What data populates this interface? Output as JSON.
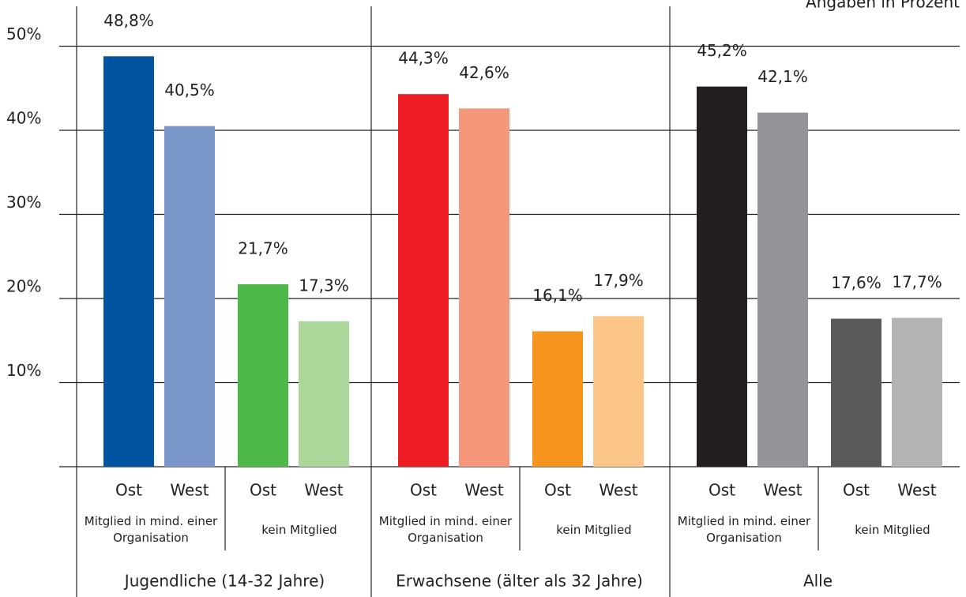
{
  "chart_data": {
    "type": "bar",
    "annotation": "Angaben in Prozent",
    "ylim": [
      0,
      55
    ],
    "yticks": [
      {
        "value": 10,
        "label": "10%"
      },
      {
        "value": 20,
        "label": "20%"
      },
      {
        "value": 30,
        "label": "30%"
      },
      {
        "value": 40,
        "label": "40%"
      },
      {
        "value": 50,
        "label": "50%"
      }
    ],
    "grid": true,
    "groups": [
      {
        "name": "Jugendliche (14-32 Jahre)",
        "subgroups": [
          {
            "name": "Mitglied in mind. einer Organisation",
            "categories": [
              "Ost",
              "West"
            ],
            "values": [
              48.8,
              40.5
            ],
            "value_labels": [
              "48,8%",
              "40,5%"
            ],
            "colors": [
              "#0054a0",
              "#7b96c8"
            ]
          },
          {
            "name": "kein Mitglied",
            "categories": [
              "Ost",
              "West"
            ],
            "values": [
              21.7,
              17.3
            ],
            "value_labels": [
              "21,7%",
              "17,3%"
            ],
            "colors": [
              "#4cb848",
              "#acd69a"
            ]
          }
        ]
      },
      {
        "name": "Erwachsene (älter als 32 Jahre)",
        "subgroups": [
          {
            "name": "Mitglied in mind. einer Organisation",
            "categories": [
              "Ost",
              "West"
            ],
            "values": [
              44.3,
              42.6
            ],
            "value_labels": [
              "44,3%",
              "42,6%"
            ],
            "colors": [
              "#ed1c24",
              "#f5977a"
            ]
          },
          {
            "name": "kein Mitglied",
            "categories": [
              "Ost",
              "West"
            ],
            "values": [
              16.1,
              17.9
            ],
            "value_labels": [
              "16,1%",
              "17,9%"
            ],
            "colors": [
              "#f7941d",
              "#fdc689"
            ]
          }
        ]
      },
      {
        "name": "Alle",
        "subgroups": [
          {
            "name": "Mitglied in mind. einer Organisation",
            "categories": [
              "Ost",
              "West"
            ],
            "values": [
              45.2,
              42.1
            ],
            "value_labels": [
              "45,2%",
              "42,1%"
            ],
            "colors": [
              "#231f20",
              "#939598"
            ]
          },
          {
            "name": "kein Mitglied",
            "categories": [
              "Ost",
              "West"
            ],
            "values": [
              17.6,
              17.7
            ],
            "value_labels": [
              "17,6%",
              "17,7%"
            ],
            "colors": [
              "#58595b",
              "#b3b4b6"
            ]
          }
        ]
      }
    ]
  }
}
